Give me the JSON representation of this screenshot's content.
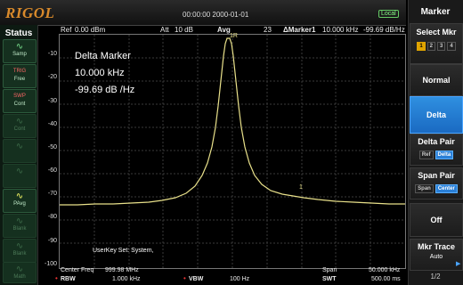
{
  "brand": "RIGOL",
  "topbar": {
    "datetime": "00:00:00 2000-01-01",
    "local_badge": "Local",
    "ref": "Ref",
    "ref_value": "0.00 dBm",
    "att": "Att",
    "att_value": "10 dB",
    "avg": "Avg",
    "avg_value": "23",
    "marker_readout": "ΔMarker1",
    "marker_freq": "10.000 kHz",
    "marker_level": "-99.69 dB/Hz"
  },
  "status": {
    "title": "Status",
    "buttons": [
      {
        "label": "Samp",
        "icon": "∿"
      },
      {
        "label": "Free",
        "icon": "TRIG"
      },
      {
        "label": "Cont",
        "icon": "SWP"
      },
      {
        "label": "Cont",
        "icon": "∿"
      },
      {
        "label": "",
        "icon": "∿"
      },
      {
        "label": "",
        "icon": "∿"
      },
      {
        "label": "PAvg",
        "icon": "∿"
      },
      {
        "label": "Blank",
        "icon": "∿"
      },
      {
        "label": "Blank",
        "icon": "∿"
      },
      {
        "label": "Math",
        "icon": "∿"
      }
    ]
  },
  "plot": {
    "y_ticks": [
      "-10",
      "-20",
      "-30",
      "-40",
      "-50",
      "-60",
      "-70",
      "-80",
      "-90",
      "-100"
    ],
    "delta_title": "Delta Marker",
    "delta_freq": "10.000 kHz",
    "delta_level": "-99.69 dB /Hz",
    "peak_marker": "1R",
    "delta_marker": "1",
    "userkey": "UserKey Set:  System,"
  },
  "bottom": {
    "center_label": "Center Freq",
    "center_value": "999.98 MHz",
    "rbw_label": "RBW",
    "rbw_value": "1.000 kHz",
    "vbw_label": "VBW",
    "vbw_value": "100 Hz",
    "span_label": "Span",
    "span_value": "50.000 kHz",
    "swt_label": "SWT",
    "swt_value": "500.00 ms"
  },
  "menu": {
    "title": "Marker",
    "select_mkr": "Select Mkr",
    "mkr_numbers": [
      "1",
      "2",
      "3",
      "4"
    ],
    "normal": "Normal",
    "delta": "Delta",
    "delta_pair": "Delta Pair",
    "delta_pair_opts": [
      "Ref",
      "Delta"
    ],
    "span_pair": "Span Pair",
    "span_pair_opts": [
      "Span",
      "Center"
    ],
    "off": "Off",
    "mkr_trace": "Mkr Trace",
    "mkr_trace_value": "Auto",
    "page": "1/2"
  },
  "colors": {
    "trace": "#e8e08a",
    "accent": "#2a7fd6",
    "brand": "#d98a2b"
  }
}
